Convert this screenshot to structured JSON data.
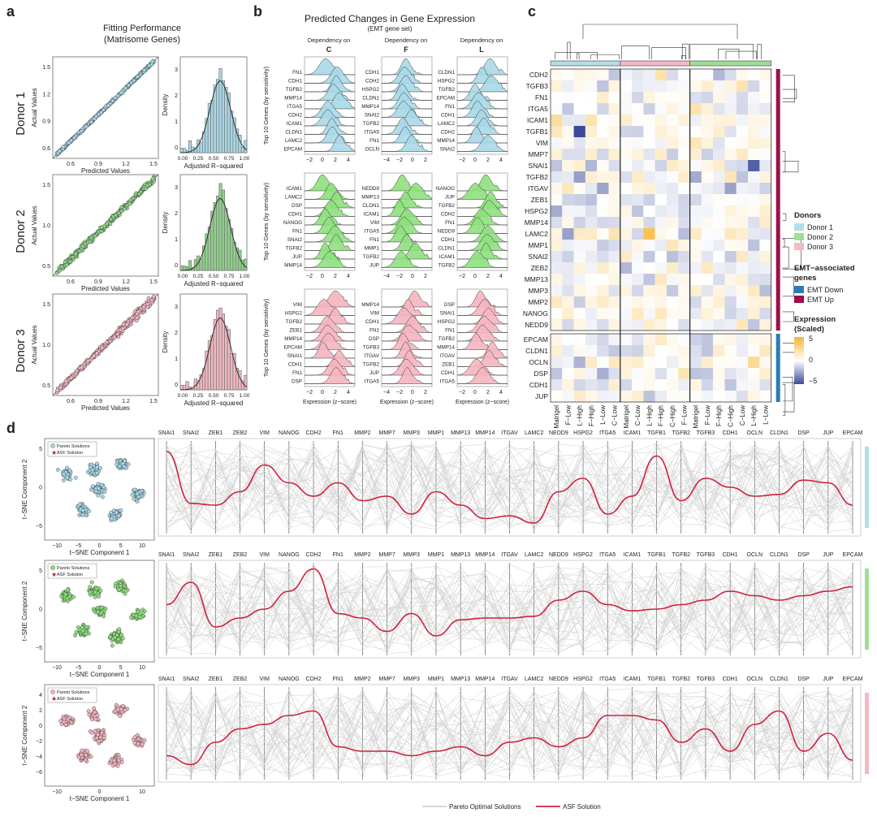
{
  "panel_letters": {
    "a": "a",
    "b": "b",
    "c": "c",
    "d": "d"
  },
  "panel_a": {
    "title": "Fitting Performance",
    "subtitle": "(Matrisome Genes)",
    "donors": [
      {
        "label": "Donor 1",
        "color": "#a8d8e8"
      },
      {
        "label": "Donor 2",
        "color": "#8fd18a"
      },
      {
        "label": "Donor 3",
        "color": "#f2b6c0"
      }
    ],
    "scatter": {
      "xlabel": "Predicted Values",
      "ylabel": "Actual Values",
      "xticks": [
        "0.6",
        "0.9",
        "1.2",
        "1.5"
      ],
      "xticks_d1": [
        "0.6",
        "0.9",
        "1.2",
        "1.5"
      ],
      "yticks_d1": [
        "0.6",
        "0.9",
        "1.2",
        "1.5"
      ],
      "yticks_d2": [
        "0.5",
        "1.0",
        "1.5"
      ],
      "yticks_d3": [
        "0.5",
        "1.0",
        "1.5"
      ]
    },
    "hist": {
      "xlabel": "Adjusted R−squared",
      "ylabel": "Density",
      "xticks": [
        "0.00",
        "0.25",
        "0.50",
        "0.75",
        "1.00"
      ],
      "xticks_d1": [
        "0.00",
        "0.25",
        "0.50",
        "0.75",
        "1.00"
      ],
      "yticks": [
        "0",
        "1",
        "2",
        "3"
      ]
    }
  },
  "panel_b": {
    "title": "Predicted Changes in Gene Expression",
    "subtitle": "(EMT gene set)",
    "dep_label": "Dependency on",
    "deps": [
      "C",
      "F",
      "L"
    ],
    "ylabel": "Top 10 Genes (by sensitivity)",
    "xlabel": "Expression (z−score)",
    "xticks": [
      "−2",
      "0",
      "2",
      "4"
    ],
    "xticks_mid": [
      "−4",
      "−2",
      "0",
      "2"
    ],
    "genes": [
      [
        [
          "FN1",
          "CDH1",
          "TGFB2",
          "MMP14",
          "ITGA5",
          "CDH2",
          "ICAM1",
          "CLDN1",
          "LAMC2",
          "EPCAM"
        ],
        [
          "CDH1",
          "CDH2",
          "HSPG2",
          "CLDN1",
          "MMP14",
          "SNAI2",
          "TGFB2",
          "ITGA5",
          "FN1",
          "OCLN"
        ],
        [
          "CLDN1",
          "HSPG2",
          "TGFB2",
          "EPCAM",
          "FN1",
          "CDH1",
          "LAMC2",
          "CDH2",
          "MMP14",
          "SNAI2"
        ]
      ],
      [
        [
          "ICAM1",
          "LAMC2",
          "DSP",
          "CDH1",
          "NANOG",
          "FN1",
          "SNAI2",
          "TGFB2",
          "JUP",
          "MMP14"
        ],
        [
          "NEDD9",
          "MMP13",
          "CLDN1",
          "ICAM1",
          "VIM",
          "ITGA5",
          "FN1",
          "MMP1",
          "TGFB2",
          "JUP"
        ],
        [
          "NANOG",
          "JUP",
          "TGFB2",
          "CDH2",
          "FN1",
          "NEDD9",
          "CDH1",
          "CLDN1",
          "ICAM1",
          "TGFB2"
        ]
      ],
      [
        [
          "VIM",
          "HSPG2",
          "TGFB2",
          "ZEB1",
          "MMP14",
          "EPCAM",
          "SNAI1",
          "CDH1",
          "FN1",
          "DSP"
        ],
        [
          "MMP14",
          "VIM",
          "CDH1",
          "FN1",
          "DSP",
          "TGFB3",
          "ITGAV",
          "TGFB2",
          "JUP",
          "ITGA5"
        ],
        [
          "DSP",
          "SNAI1",
          "HSPG2",
          "FN1",
          "TGFB2",
          "MMP14",
          "ITGAV",
          "ZEB1",
          "CDH1",
          "ITGA5"
        ]
      ]
    ]
  },
  "panel_c": {
    "genes_up": [
      "CDH2",
      "TGFB3",
      "FN1",
      "ITGA5",
      "ICAM1",
      "TGFB1",
      "VIM",
      "MMP7",
      "SNAI1",
      "TGFB2",
      "ITGAV",
      "ZEB1",
      "HSPG2",
      "MMP14",
      "LAMC2",
      "MMP1",
      "SNAI2",
      "ZEB2",
      "MMP13",
      "MMP3",
      "MMP2",
      "NANOG",
      "NEDD9"
    ],
    "genes_down": [
      "EPCAM",
      "CLDN1",
      "OCLN",
      "DSP",
      "CDH1",
      "JUP"
    ],
    "columns": [
      "Matrigel",
      "F−Low",
      "L−High",
      "F−High",
      "L−Low",
      "C−Low",
      "Matrigel",
      "C−Low",
      "L−High",
      "F−High",
      "C−High",
      "F−Low",
      "Matrigel",
      "F−Low",
      "F−High",
      "C−High",
      "C−Low",
      "L−High",
      "L−Low"
    ],
    "legend": {
      "donors_title": "Donors",
      "donors": [
        "Donor 1",
        "Donor 2",
        "Donor 3"
      ],
      "emt_title": "EMT−associated genes",
      "emt_title_1": "EMT−associated",
      "emt_title_2": "genes",
      "emt": [
        "EMT Down",
        "EMT Up"
      ],
      "expr_title_1": "Expression",
      "expr_title_2": "(Scaled)",
      "expr_ticks": [
        "5",
        "0",
        "−5"
      ]
    },
    "colors": {
      "donor1": "#b4dde6",
      "donor2": "#f5b8c4",
      "donor3": "#9ede95",
      "emt_down": "#2b7bb9",
      "emt_up": "#9c0f4a",
      "high": "#f7b733",
      "low": "#3b4c9b"
    }
  },
  "panel_d": {
    "genes": [
      "SNAI1",
      "SNAI2",
      "ZEB1",
      "ZEB2",
      "VIM",
      "NANOG",
      "CDH2",
      "FN1",
      "MMP2",
      "MMP7",
      "MMP3",
      "MMP1",
      "MMP13",
      "MMP14",
      "ITGAV",
      "LAMC2",
      "NEDD9",
      "HSPG2",
      "ITGA5",
      "ICAM1",
      "TGFB1",
      "TGFB2",
      "TGFB3",
      "CDH1",
      "OCLN",
      "CLDN1",
      "DSP",
      "JUP",
      "EPCAM"
    ],
    "tsne": {
      "xlabel": "t−SNE Component 1",
      "ylabel": "t−SNE Component 2",
      "legend_pareto": "Pareto Solutions",
      "legend_asf": "ASF Solution",
      "xticks_1": [
        "−10",
        "−5",
        "0",
        "5",
        "10"
      ],
      "yticks_1": [
        "5",
        "0",
        "−5"
      ],
      "xticks_2": [
        "−10",
        "−5",
        "0",
        "5",
        "10"
      ],
      "yticks_2": [
        "5",
        "0",
        "−5"
      ],
      "xticks_3": [
        "−10",
        "0",
        "10"
      ],
      "yticks_3": [
        "4",
        "2",
        "0",
        "−2",
        "−4",
        "−6"
      ]
    },
    "legend": {
      "pareto": "Pareto Optimal Solutions",
      "asf": "ASF Solution"
    },
    "asf_color": "#d0213b",
    "asf_lines": [
      [
        0.1,
        0.68,
        0.7,
        0.55,
        0.25,
        0.45,
        0.6,
        0.45,
        0.65,
        0.6,
        0.8,
        0.55,
        0.7,
        0.85,
        0.82,
        0.9,
        0.55,
        0.4,
        0.8,
        0.6,
        0.15,
        0.65,
        0.4,
        0.5,
        0.6,
        0.58,
        0.42,
        0.45,
        0.7
      ],
      [
        0.45,
        0.2,
        0.7,
        0.6,
        0.5,
        0.3,
        0.05,
        0.55,
        0.6,
        0.75,
        0.55,
        0.8,
        0.62,
        0.6,
        0.6,
        0.58,
        0.4,
        0.3,
        0.45,
        0.52,
        0.5,
        0.45,
        0.4,
        0.3,
        0.35,
        0.4,
        0.35,
        0.3,
        0.25
      ],
      [
        0.75,
        0.85,
        0.6,
        0.45,
        0.4,
        0.3,
        0.25,
        0.65,
        0.7,
        0.7,
        0.75,
        0.7,
        0.65,
        0.75,
        0.6,
        0.55,
        0.65,
        0.55,
        0.3,
        0.3,
        0.35,
        0.6,
        0.45,
        0.7,
        0.4,
        0.25,
        0.7,
        0.5,
        0.8
      ]
    ]
  }
}
